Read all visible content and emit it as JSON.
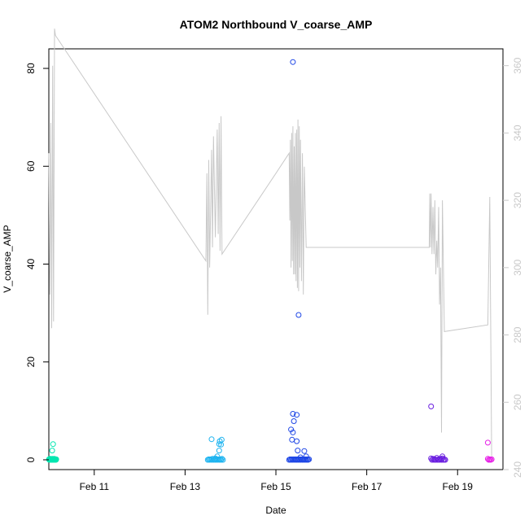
{
  "chart_data": {
    "type": "scatter",
    "title": "ATOM2 Northbound V_coarse_AMP",
    "xlabel": "Date",
    "ylabel": "V_coarse_AMP",
    "x_axis": {
      "type": "date",
      "range": [
        "2023-02-10T00:00",
        "2023-02-19T23:59"
      ],
      "ticks": [
        {
          "value": "2023-02-11",
          "label": "Feb 11"
        },
        {
          "value": "2023-02-13",
          "label": "Feb 13"
        },
        {
          "value": "2023-02-15",
          "label": "Feb 15"
        },
        {
          "value": "2023-02-17",
          "label": "Feb 17"
        },
        {
          "value": "2023-02-19",
          "label": "Feb 19"
        }
      ]
    },
    "y_axis": {
      "range": [
        -2,
        84
      ],
      "ticks": [
        {
          "value": 0,
          "label": "0"
        },
        {
          "value": 20,
          "label": "20"
        },
        {
          "value": 40,
          "label": "40"
        },
        {
          "value": 60,
          "label": "60"
        },
        {
          "value": 80,
          "label": "80"
        }
      ]
    },
    "y2_axis": {
      "range": [
        240,
        365
      ],
      "color": "#c8c8c8",
      "ticks": [
        {
          "value": 240,
          "label": "240"
        },
        {
          "value": 260,
          "label": "260"
        },
        {
          "value": 280,
          "label": "280"
        },
        {
          "value": 300,
          "label": "300"
        },
        {
          "value": 320,
          "label": "320"
        },
        {
          "value": 340,
          "label": "340"
        },
        {
          "value": 360,
          "label": "360"
        }
      ]
    },
    "grid": false,
    "legend": "none",
    "point_series": [
      {
        "color": "#00e6b0",
        "points": [
          [
            "2023-02-10T00:05",
            0.1
          ],
          [
            "2023-02-10T00:15",
            0.0
          ],
          [
            "2023-02-10T00:25",
            0.2
          ],
          [
            "2023-02-10T00:35",
            0.0
          ],
          [
            "2023-02-10T00:45",
            0.1
          ],
          [
            "2023-02-10T00:55",
            0.0
          ],
          [
            "2023-02-10T01:05",
            0.2
          ],
          [
            "2023-02-10T01:15",
            0.0
          ],
          [
            "2023-02-10T01:25",
            0.1
          ],
          [
            "2023-02-10T01:35",
            0.0
          ],
          [
            "2023-02-10T01:45",
            0.1
          ],
          [
            "2023-02-10T01:55",
            0.0
          ],
          [
            "2023-02-10T02:05",
            0.2
          ],
          [
            "2023-02-10T02:15",
            0.1
          ],
          [
            "2023-02-10T02:25",
            0.0
          ],
          [
            "2023-02-10T02:35",
            0.1
          ],
          [
            "2023-02-10T02:45",
            0.0
          ],
          [
            "2023-02-10T02:55",
            0.2
          ],
          [
            "2023-02-10T03:05",
            0.0
          ],
          [
            "2023-02-10T03:15",
            0.1
          ],
          [
            "2023-02-10T03:25",
            0.0
          ],
          [
            "2023-02-10T03:35",
            0.1
          ],
          [
            "2023-02-10T03:45",
            0.0
          ],
          [
            "2023-02-10T03:55",
            0.1
          ],
          [
            "2023-02-10T01:45",
            1.9
          ],
          [
            "2023-02-10T02:15",
            3.2
          ]
        ]
      },
      {
        "color": "#1eb4f0",
        "points": [
          [
            "2023-02-13T12:00",
            0.0
          ],
          [
            "2023-02-13T12:30",
            0.1
          ],
          [
            "2023-02-13T13:00",
            0.0
          ],
          [
            "2023-02-13T13:30",
            0.1
          ],
          [
            "2023-02-13T14:00",
            0.0
          ],
          [
            "2023-02-13T14:30",
            0.2
          ],
          [
            "2023-02-13T15:00",
            0.0
          ],
          [
            "2023-02-13T15:30",
            0.1
          ],
          [
            "2023-02-13T16:00",
            0.0
          ],
          [
            "2023-02-13T16:30",
            0.1
          ],
          [
            "2023-02-13T17:00",
            0.0
          ],
          [
            "2023-02-13T17:30",
            0.1
          ],
          [
            "2023-02-13T18:00",
            0.0
          ],
          [
            "2023-02-13T18:30",
            0.1
          ],
          [
            "2023-02-13T19:00",
            0.0
          ],
          [
            "2023-02-13T19:30",
            0.2
          ],
          [
            "2023-02-13T20:00",
            0.0
          ],
          [
            "2023-02-13T14:00",
            4.2
          ],
          [
            "2023-02-13T16:00",
            0.3
          ],
          [
            "2023-02-13T17:00",
            0.7
          ],
          [
            "2023-02-13T18:00",
            1.9
          ],
          [
            "2023-02-13T18:00",
            3.2
          ],
          [
            "2023-02-13T18:20",
            3.8
          ],
          [
            "2023-02-13T19:20",
            4.1
          ],
          [
            "2023-02-13T19:00",
            3.1
          ]
        ]
      },
      {
        "color": "#1e46e6",
        "points": [
          [
            "2023-02-15T09:00",
            81.3
          ],
          [
            "2023-02-15T12:00",
            29.6
          ],
          [
            "2023-02-15T09:00",
            9.4
          ],
          [
            "2023-02-15T11:00",
            9.2
          ],
          [
            "2023-02-15T09:30",
            7.9
          ],
          [
            "2023-02-15T08:00",
            6.2
          ],
          [
            "2023-02-15T09:00",
            5.6
          ],
          [
            "2023-02-15T08:30",
            4.1
          ],
          [
            "2023-02-15T11:00",
            3.8
          ],
          [
            "2023-02-15T11:30",
            1.9
          ],
          [
            "2023-02-15T15:00",
            1.8
          ],
          [
            "2023-02-15T16:00",
            0.7
          ],
          [
            "2023-02-15T13:00",
            0.5
          ],
          [
            "2023-02-15T07:00",
            0.0
          ],
          [
            "2023-02-15T07:30",
            0.1
          ],
          [
            "2023-02-15T08:00",
            0.0
          ],
          [
            "2023-02-15T08:30",
            0.1
          ],
          [
            "2023-02-15T09:00",
            0.0
          ],
          [
            "2023-02-15T09:30",
            0.1
          ],
          [
            "2023-02-15T10:00",
            0.0
          ],
          [
            "2023-02-15T10:30",
            0.1
          ],
          [
            "2023-02-15T11:00",
            0.0
          ],
          [
            "2023-02-15T11:30",
            0.1
          ],
          [
            "2023-02-15T12:00",
            0.0
          ],
          [
            "2023-02-15T12:30",
            0.1
          ],
          [
            "2023-02-15T13:00",
            0.0
          ],
          [
            "2023-02-15T13:30",
            0.1
          ],
          [
            "2023-02-15T14:00",
            0.0
          ],
          [
            "2023-02-15T14:30",
            0.1
          ],
          [
            "2023-02-15T15:00",
            0.0
          ],
          [
            "2023-02-15T15:30",
            0.1
          ],
          [
            "2023-02-15T16:00",
            0.0
          ],
          [
            "2023-02-15T16:30",
            0.1
          ],
          [
            "2023-02-15T17:00",
            0.0
          ],
          [
            "2023-02-15T17:30",
            0.1
          ]
        ]
      },
      {
        "color": "#6a1ee0",
        "points": [
          [
            "2023-02-18T10:00",
            10.9
          ],
          [
            "2023-02-18T10:00",
            0.3
          ],
          [
            "2023-02-18T10:30",
            0.0
          ],
          [
            "2023-02-18T11:00",
            0.2
          ],
          [
            "2023-02-18T11:30",
            0.0
          ],
          [
            "2023-02-18T12:00",
            0.1
          ],
          [
            "2023-02-18T12:30",
            0.0
          ],
          [
            "2023-02-18T13:00",
            0.4
          ],
          [
            "2023-02-18T13:30",
            0.0
          ],
          [
            "2023-02-18T14:00",
            0.1
          ],
          [
            "2023-02-18T14:30",
            0.0
          ],
          [
            "2023-02-18T15:00",
            0.2
          ],
          [
            "2023-02-18T15:30",
            0.0
          ],
          [
            "2023-02-18T16:00",
            0.7
          ],
          [
            "2023-02-18T16:30",
            0.0
          ],
          [
            "2023-02-18T17:00",
            0.1
          ],
          [
            "2023-02-18T17:30",
            0.0
          ],
          [
            "2023-02-18T16:00",
            0.3
          ]
        ]
      },
      {
        "color": "#e61ee6",
        "points": [
          [
            "2023-02-19T16:00",
            3.5
          ],
          [
            "2023-02-19T16:00",
            0.2
          ],
          [
            "2023-02-19T16:30",
            0.0
          ],
          [
            "2023-02-19T17:00",
            0.1
          ],
          [
            "2023-02-19T17:30",
            0.0
          ],
          [
            "2023-02-19T18:00",
            0.1
          ]
        ]
      }
    ],
    "line_series": {
      "axis": "y2",
      "color": "#c8c8c8",
      "points": [
        [
          "2023-02-10T00:00",
          334
        ],
        [
          "2023-02-10T00:30",
          292
        ],
        [
          "2023-02-10T01:00",
          343
        ],
        [
          "2023-02-10T01:30",
          282
        ],
        [
          "2023-02-10T02:00",
          360
        ],
        [
          "2023-02-10T02:30",
          284
        ],
        [
          "2023-02-10T03:00",
          371
        ],
        [
          "2023-02-10T03:30",
          369
        ],
        [
          "2023-02-13T11:00",
          302
        ],
        [
          "2023-02-13T11:30",
          328
        ],
        [
          "2023-02-13T12:00",
          286
        ],
        [
          "2023-02-13T12:30",
          332
        ],
        [
          "2023-02-13T13:00",
          300
        ],
        [
          "2023-02-13T14:00",
          335
        ],
        [
          "2023-02-13T14:30",
          306
        ],
        [
          "2023-02-13T15:00",
          339
        ],
        [
          "2023-02-13T16:00",
          309
        ],
        [
          "2023-02-13T17:00",
          341
        ],
        [
          "2023-02-13T17:30",
          310
        ],
        [
          "2023-02-13T18:00",
          343
        ],
        [
          "2023-02-13T18:30",
          305
        ],
        [
          "2023-02-13T19:00",
          345
        ],
        [
          "2023-02-13T19:30",
          304
        ],
        [
          "2023-02-15T00:00",
          328
        ],
        [
          "2023-02-15T07:00",
          334
        ],
        [
          "2023-02-15T07:20",
          314
        ],
        [
          "2023-02-15T07:40",
          338
        ],
        [
          "2023-02-15T08:00",
          300
        ],
        [
          "2023-02-15T08:20",
          340
        ],
        [
          "2023-02-15T08:40",
          302
        ],
        [
          "2023-02-15T09:00",
          342
        ],
        [
          "2023-02-15T09:20",
          298
        ],
        [
          "2023-02-15T09:40",
          336
        ],
        [
          "2023-02-15T10:00",
          298
        ],
        [
          "2023-02-15T10:20",
          340
        ],
        [
          "2023-02-15T10:40",
          296
        ],
        [
          "2023-02-15T11:00",
          341
        ],
        [
          "2023-02-15T11:20",
          294
        ],
        [
          "2023-02-15T11:40",
          344
        ],
        [
          "2023-02-15T12:00",
          293
        ],
        [
          "2023-02-15T12:20",
          342
        ],
        [
          "2023-02-15T12:40",
          300
        ],
        [
          "2023-02-15T13:00",
          338
        ],
        [
          "2023-02-15T13:30",
          296
        ],
        [
          "2023-02-15T14:00",
          334
        ],
        [
          "2023-02-15T14:30",
          292
        ],
        [
          "2023-02-15T15:00",
          330
        ],
        [
          "2023-02-15T16:00",
          306
        ],
        [
          "2023-02-15T17:00",
          306
        ],
        [
          "2023-02-18T09:00",
          306
        ],
        [
          "2023-02-18T09:20",
          322
        ],
        [
          "2023-02-18T09:40",
          306
        ],
        [
          "2023-02-18T10:00",
          322
        ],
        [
          "2023-02-18T10:30",
          304
        ],
        [
          "2023-02-18T11:00",
          318
        ],
        [
          "2023-02-18T11:30",
          304
        ],
        [
          "2023-02-18T12:00",
          320
        ],
        [
          "2023-02-18T12:30",
          298
        ],
        [
          "2023-02-18T13:00",
          308
        ],
        [
          "2023-02-18T13:30",
          300
        ],
        [
          "2023-02-18T14:00",
          318
        ],
        [
          "2023-02-18T14:30",
          289
        ],
        [
          "2023-02-18T15:00",
          300
        ],
        [
          "2023-02-18T15:30",
          251
        ],
        [
          "2023-02-18T16:00",
          320
        ],
        [
          "2023-02-18T17:00",
          281
        ],
        [
          "2023-02-19T16:00",
          283
        ],
        [
          "2023-02-19T17:00",
          321
        ],
        [
          "2023-02-19T18:00",
          244
        ]
      ]
    }
  }
}
